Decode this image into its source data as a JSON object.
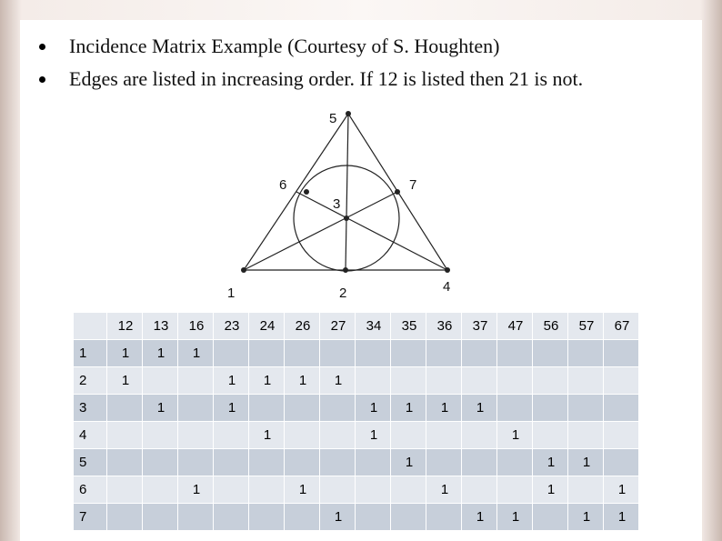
{
  "bullets": [
    "Incidence Matrix Example (Courtesy of S. Houghten)",
    "Edges are listed in increasing order. If 12 is listed then 21 is not."
  ],
  "diagram": {
    "nodes": [
      {
        "label": "1"
      },
      {
        "label": "2"
      },
      {
        "label": "3"
      },
      {
        "label": "4"
      },
      {
        "label": "5"
      },
      {
        "label": "6"
      },
      {
        "label": "7"
      }
    ]
  },
  "table": {
    "header": [
      "12",
      "13",
      "16",
      "23",
      "24",
      "26",
      "27",
      "34",
      "35",
      "36",
      "37",
      "47",
      "56",
      "57",
      "67"
    ],
    "rows": [
      {
        "label": "1",
        "cells": [
          "1",
          "1",
          "1",
          null,
          null,
          null,
          null,
          null,
          null,
          null,
          null,
          null,
          null,
          null,
          null
        ]
      },
      {
        "label": "2",
        "cells": [
          "1",
          null,
          null,
          "1",
          "1",
          "1",
          "1",
          null,
          null,
          null,
          null,
          null,
          null,
          null,
          null
        ]
      },
      {
        "label": "3",
        "cells": [
          null,
          "1",
          null,
          "1",
          null,
          null,
          null,
          "1",
          "1",
          "1",
          "1",
          null,
          null,
          null,
          null
        ]
      },
      {
        "label": "4",
        "cells": [
          null,
          null,
          null,
          null,
          "1",
          null,
          null,
          "1",
          null,
          null,
          null,
          "1",
          null,
          null,
          null
        ]
      },
      {
        "label": "5",
        "cells": [
          null,
          null,
          null,
          null,
          null,
          null,
          null,
          null,
          "1",
          null,
          null,
          null,
          "1",
          "1",
          null
        ]
      },
      {
        "label": "6",
        "cells": [
          null,
          null,
          "1",
          null,
          null,
          "1",
          null,
          null,
          null,
          "1",
          null,
          null,
          "1",
          null,
          "1"
        ]
      },
      {
        "label": "7",
        "cells": [
          null,
          null,
          null,
          null,
          null,
          null,
          "1",
          null,
          null,
          null,
          "1",
          "1",
          null,
          "1",
          "1"
        ]
      }
    ]
  }
}
